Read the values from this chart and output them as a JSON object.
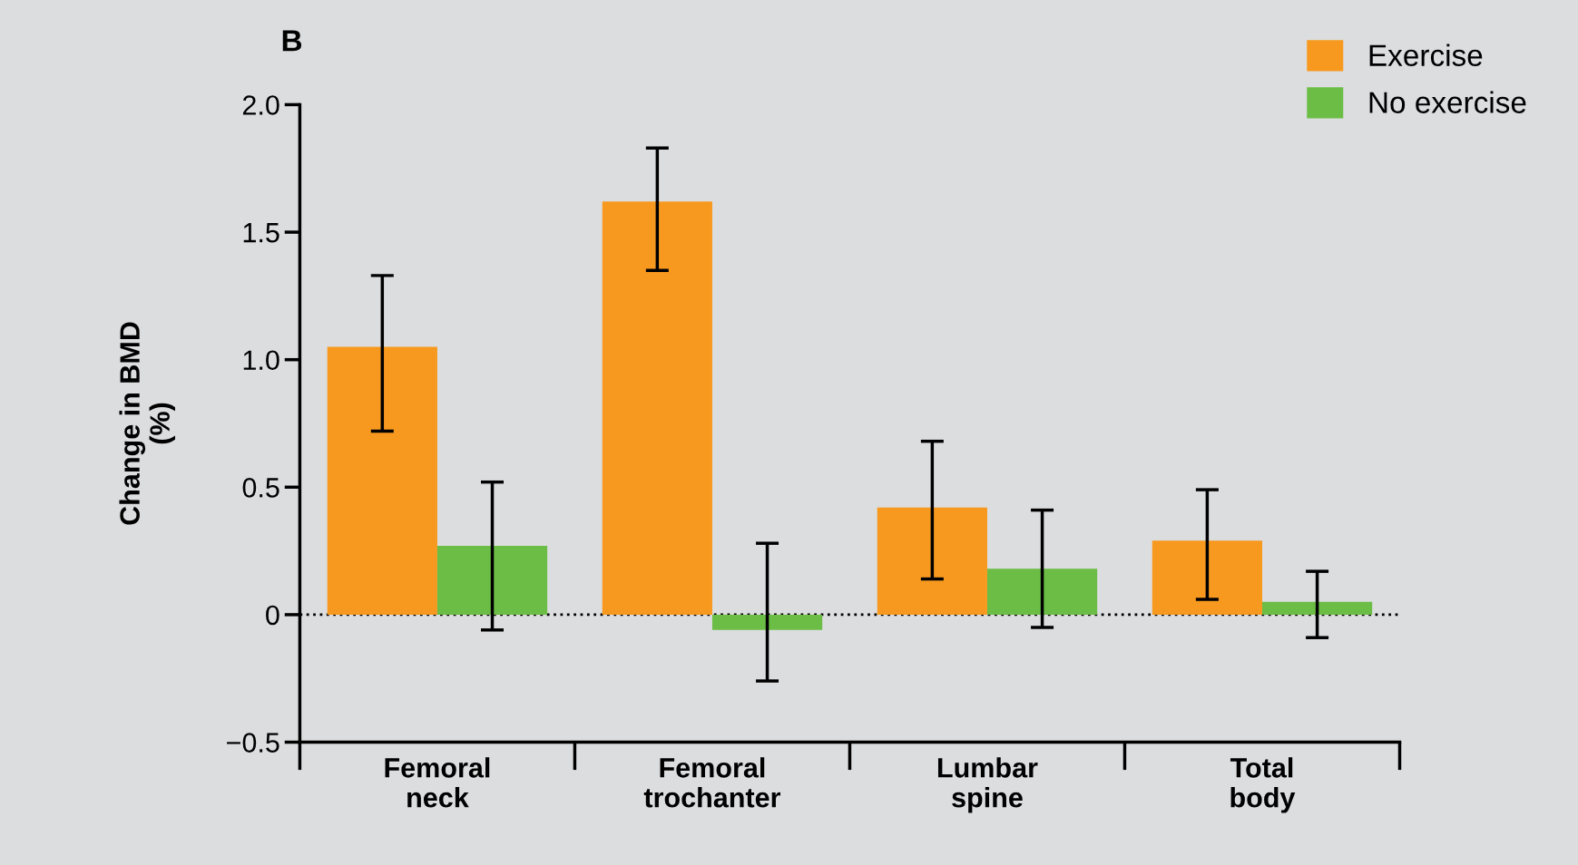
{
  "chart_data": {
    "type": "bar",
    "title": "B",
    "ylabel": "Change in BMD\n(%)",
    "categories": [
      "Femoral\nneck",
      "Femoral\ntrochanter",
      "Lumbar\nspine",
      "Total\nbody"
    ],
    "series": [
      {
        "name": "Exercise",
        "color": "#f7991f",
        "values": [
          1.05,
          1.62,
          0.42,
          0.29
        ],
        "errors": [
          [
            0.72,
            1.33
          ],
          [
            1.35,
            1.83
          ],
          [
            0.14,
            0.68
          ],
          [
            0.06,
            0.49
          ]
        ]
      },
      {
        "name": "No exercise",
        "color": "#6bbd45",
        "values": [
          0.27,
          -0.06,
          0.18,
          0.05
        ],
        "errors": [
          [
            -0.06,
            0.52
          ],
          [
            -0.26,
            0.28
          ],
          [
            -0.05,
            0.41
          ],
          [
            -0.09,
            0.17
          ]
        ]
      }
    ],
    "ylim": [
      -0.5,
      2.0
    ],
    "yticks": [
      {
        "value": -0.5,
        "label": "−0.5"
      },
      0,
      0.5,
      {
        "value": 1,
        "label": "1.0"
      },
      1.5,
      {
        "value": 2,
        "label": "2.0"
      }
    ],
    "ref_lines": [
      {
        "axis": "y",
        "value": 0,
        "line_style": "dotted",
        "color": "#000000"
      }
    ],
    "grid": false,
    "legend": "top right"
  }
}
